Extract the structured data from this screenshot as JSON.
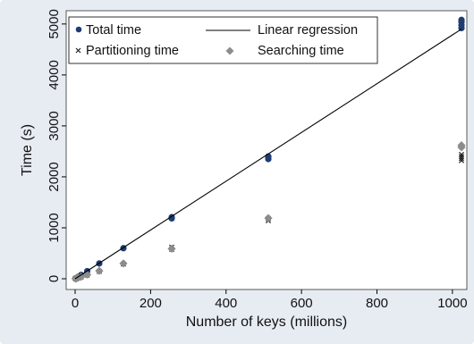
{
  "chart_data": {
    "type": "scatter",
    "xlabel": "Number of keys (millions)",
    "ylabel": "Time (s)",
    "xlim": [
      0,
      1024
    ],
    "ylim": [
      0,
      5120
    ],
    "xticks": [
      0,
      200,
      400,
      600,
      800,
      1000
    ],
    "yticks": [
      0,
      1000,
      2000,
      3000,
      4000,
      5000
    ],
    "grid": false,
    "legend_position": "top",
    "series": [
      {
        "name": "Total time",
        "marker": "circle",
        "color": "#1f3d73",
        "points": [
          [
            1,
            5
          ],
          [
            2,
            10
          ],
          [
            4,
            19
          ],
          [
            8,
            38
          ],
          [
            16,
            76
          ],
          [
            32,
            150
          ],
          [
            64,
            300
          ],
          [
            128,
            600
          ],
          [
            256,
            1185
          ],
          [
            256,
            1210
          ],
          [
            512,
            2350
          ],
          [
            512,
            2400
          ],
          [
            1024,
            4920
          ],
          [
            1024,
            4980
          ],
          [
            1024,
            5040
          ],
          [
            1024,
            5080
          ]
        ]
      },
      {
        "name": "Partitioning time",
        "marker": "x",
        "color": "#222222",
        "points": [
          [
            1,
            2
          ],
          [
            2,
            5
          ],
          [
            4,
            9
          ],
          [
            8,
            18
          ],
          [
            16,
            36
          ],
          [
            32,
            72
          ],
          [
            64,
            145
          ],
          [
            128,
            290
          ],
          [
            256,
            580
          ],
          [
            256,
            620
          ],
          [
            512,
            1140
          ],
          [
            512,
            1180
          ],
          [
            1024,
            2320
          ],
          [
            1024,
            2360
          ],
          [
            1024,
            2400
          ],
          [
            1024,
            2440
          ]
        ]
      },
      {
        "name": "Searching time",
        "marker": "diamond",
        "color": "#8c8c8c",
        "points": [
          [
            1,
            3
          ],
          [
            2,
            5
          ],
          [
            4,
            10
          ],
          [
            8,
            20
          ],
          [
            16,
            40
          ],
          [
            32,
            80
          ],
          [
            64,
            155
          ],
          [
            128,
            300
          ],
          [
            256,
            590
          ],
          [
            512,
            1190
          ],
          [
            1024,
            2580
          ],
          [
            1024,
            2620
          ]
        ]
      },
      {
        "name": "Linear regression",
        "marker": "line",
        "color": "#000000",
        "points": [
          [
            0,
            0
          ],
          [
            1024,
            4900
          ]
        ]
      }
    ]
  }
}
